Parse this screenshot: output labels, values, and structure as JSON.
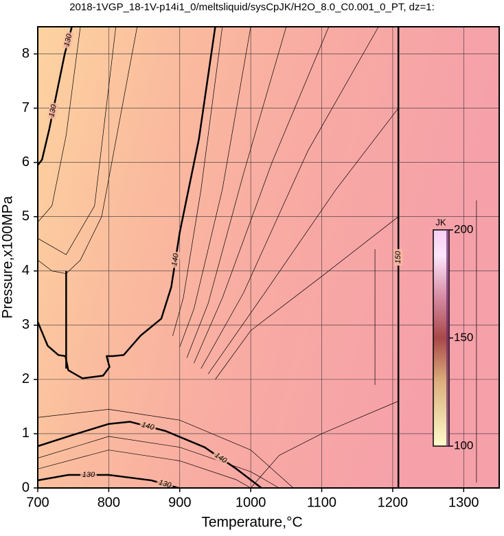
{
  "chart_data": {
    "type": "contour",
    "title": "2018-1VGP_18-1V-p14i1_0/meltsliquid/sysCpJK/H2O_8.0_C0.001_0_PT, dz=1:",
    "xlabel": "Temperature,°C",
    "ylabel": "Pressure,x100MPa",
    "xlim": [
      700,
      1350
    ],
    "ylim": [
      0,
      8.5
    ],
    "xticks": [
      700,
      800,
      900,
      1000,
      1100,
      1200,
      1300
    ],
    "yticks": [
      0,
      1,
      2,
      3,
      4,
      5,
      6,
      7,
      8
    ],
    "grid": true,
    "contours": [
      {
        "level": 130,
        "x": [
          700,
          706,
          716,
          727,
          738,
          748
        ],
        "y": [
          5.95,
          6.05,
          6.6,
          7.3,
          8.0,
          8.5
        ]
      },
      {
        "level": 140,
        "x": [
          700,
          714,
          729,
          739,
          743,
          763,
          792,
          801,
          797,
          806,
          821,
          845,
          874,
          888,
          900,
          927,
          950
        ],
        "y": [
          3.06,
          2.62,
          2.45,
          2.43,
          2.17,
          2.02,
          2.07,
          2.23,
          2.43,
          2.43,
          2.45,
          2.81,
          3.12,
          3.7,
          4.71,
          6.43,
          8.5
        ]
      },
      {
        "level": 140,
        "x": [
          700,
          750,
          800,
          830,
          880,
          935,
          980,
          1015
        ],
        "y": [
          0.77,
          0.98,
          1.18,
          1.22,
          1.05,
          0.75,
          0.35,
          0
        ]
      },
      {
        "level": 130,
        "x": [
          700,
          743,
          800,
          860,
          898
        ],
        "y": [
          0.14,
          0.24,
          0.24,
          0.14,
          0
        ]
      },
      {
        "level": 150,
        "x": [
          1208,
          1208
        ],
        "y": [
          0,
          8.5
        ]
      }
    ],
    "minor_contours": [
      {
        "x": [
          960,
          930,
          905,
          890
        ],
        "y": [
          8.5,
          5.5,
          3.5,
          2.8
        ]
      },
      {
        "x": [
          1000,
          960,
          920,
          900
        ],
        "y": [
          8.5,
          5.5,
          3.3,
          2.6
        ]
      },
      {
        "x": [
          1050,
          990,
          940,
          910
        ],
        "y": [
          8.5,
          5.8,
          3.4,
          2.4
        ]
      },
      {
        "x": [
          1110,
          1030,
          960,
          920
        ],
        "y": [
          8.5,
          6.0,
          3.5,
          2.3
        ]
      },
      {
        "x": [
          1180,
          1080,
          990,
          930
        ],
        "y": [
          8.5,
          6.2,
          3.6,
          2.2
        ]
      },
      {
        "x": [
          1208,
          1120,
          1020,
          940
        ],
        "y": [
          7.0,
          5.5,
          3.6,
          2.1
        ]
      },
      {
        "x": [
          1208,
          1100,
          1000,
          950
        ],
        "y": [
          5.0,
          3.9,
          2.9,
          2.0
        ]
      },
      {
        "x": [
          700,
          800,
          900,
          1000,
          1040
        ],
        "y": [
          0.55,
          0.95,
          0.75,
          0.3,
          0
        ]
      },
      {
        "x": [
          700,
          800,
          900,
          980,
          1000
        ],
        "y": [
          0.35,
          0.7,
          0.5,
          0.15,
          0
        ]
      },
      {
        "x": [
          700,
          800,
          900,
          1000,
          1060
        ],
        "y": [
          1.3,
          1.45,
          1.25,
          0.7,
          0
        ]
      },
      {
        "x": [
          1208,
          1100,
          1040,
          1000
        ],
        "y": [
          1.6,
          1.0,
          0.6,
          0
        ]
      },
      {
        "x": [
          700,
          720,
          740,
          760,
          790,
          840
        ],
        "y": [
          4.2,
          4.0,
          3.95,
          4.2,
          5.0,
          8.5
        ]
      },
      {
        "x": [
          700,
          740,
          780,
          810
        ],
        "y": [
          4.6,
          4.3,
          5.2,
          8.5
        ]
      },
      {
        "x": [
          700,
          720,
          740,
          760
        ],
        "y": [
          4.9,
          5.2,
          6.5,
          8.5
        ]
      },
      {
        "x": [
          740,
          740
        ],
        "y": [
          2.2,
          4.0
        ]
      },
      {
        "x": [
          1175,
          1175
        ],
        "y": [
          1.9,
          4.4
        ]
      },
      {
        "x": [
          1318,
          1318
        ],
        "y": [
          0.1,
          5.3
        ]
      }
    ],
    "colorbar": {
      "label": "JK",
      "lim": [
        100,
        200
      ],
      "ticks": [
        100,
        150,
        200
      ]
    }
  }
}
